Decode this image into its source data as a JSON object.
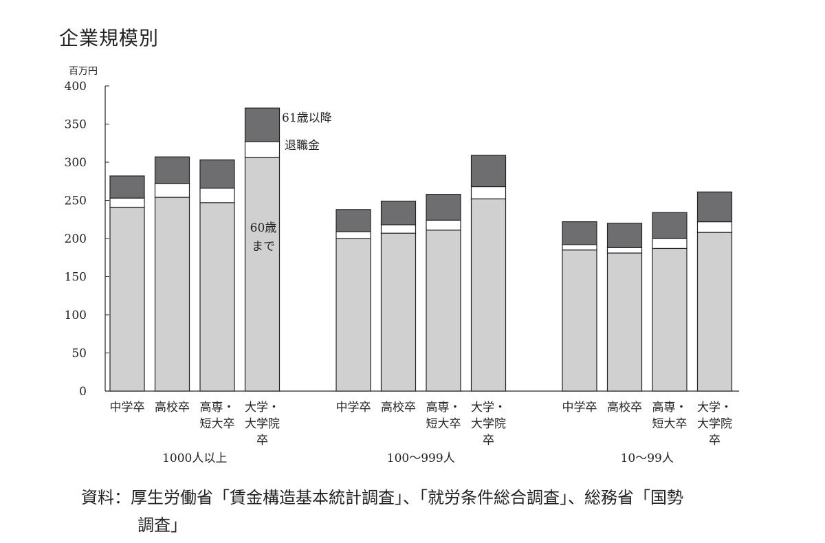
{
  "title": "企業規模別",
  "source_line1": "資料：厚生労働省「賃金構造基本統計調査」、「就労条件総合調査」、総務省「国勢",
  "source_line2": "調査」",
  "chart_data": {
    "type": "bar",
    "stacked": true,
    "y_unit": "百万円",
    "ylim": [
      0,
      400
    ],
    "yticks": [
      0,
      50,
      100,
      150,
      200,
      250,
      300,
      350,
      400
    ],
    "grid": false,
    "groups": [
      {
        "label": "1000人以上",
        "categories": [
          [
            "中学卒"
          ],
          [
            "高校卒"
          ],
          [
            "高専・",
            "短大卒"
          ],
          [
            "大学・",
            "大学院",
            "卒"
          ]
        ]
      },
      {
        "label": "100〜999人",
        "categories": [
          [
            "中学卒"
          ],
          [
            "高校卒"
          ],
          [
            "高専・",
            "短大卒"
          ],
          [
            "大学・",
            "大学院",
            "卒"
          ]
        ]
      },
      {
        "label": "10〜99人",
        "categories": [
          [
            "中学卒"
          ],
          [
            "高校卒"
          ],
          [
            "高専・",
            "短大卒"
          ],
          [
            "大学・",
            "大学院",
            "卒"
          ]
        ]
      }
    ],
    "series": [
      {
        "name": "60歳まで",
        "color": "#d0d0d0",
        "values": [
          241,
          254,
          247,
          306,
          200,
          207,
          211,
          252,
          185,
          181,
          187,
          208
        ]
      },
      {
        "name": "退職金",
        "color": "#ffffff",
        "values": [
          12,
          18,
          19,
          21,
          9,
          11,
          13,
          16,
          7,
          7,
          13,
          14
        ]
      },
      {
        "name": "61歳以降",
        "color": "#6e6e70",
        "values": [
          29,
          35,
          37,
          44,
          29,
          31,
          34,
          41,
          30,
          32,
          34,
          39
        ]
      }
    ],
    "annotations": {
      "after60": "61歳以降",
      "retirement": "退職金",
      "until60_line1": "60歳",
      "until60_line2": "まで"
    }
  }
}
